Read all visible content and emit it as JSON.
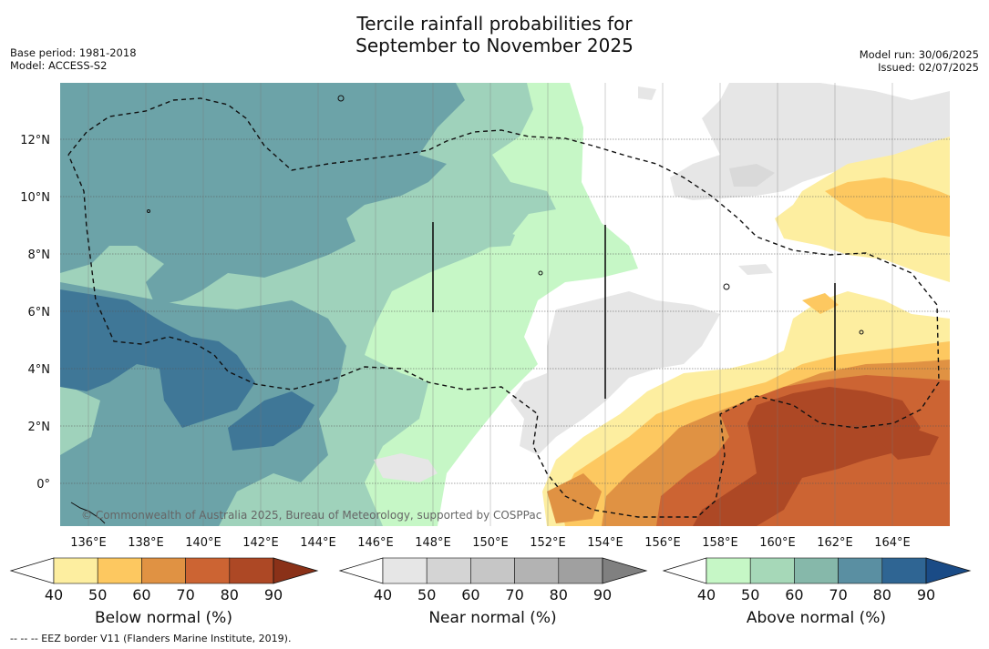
{
  "title_line1": "Tercile rainfall probabilities for",
  "title_line2": "September to November 2025",
  "base_period": "Base period: 1981-2018",
  "model": "Model: ACCESS-S2",
  "model_run": "Model run: 30/06/2025",
  "issued": "Issued: 02/07/2025",
  "copyright": "© Commonwealth of Australia 2025, Bureau of Meteorology, supported by COSPPac",
  "footer": "--  --  -- EEZ border V11 (Flanders Marine Institute, 2019).",
  "lat_labels": [
    "12°N",
    "10°N",
    "8°N",
    "6°N",
    "4°N",
    "2°N",
    "0°"
  ],
  "lon_labels": [
    "136°E",
    "138°E",
    "140°E",
    "142°E",
    "144°E",
    "146°E",
    "148°E",
    "150°E",
    "152°E",
    "154°E",
    "156°E",
    "158°E",
    "160°E",
    "162°E",
    "164°E"
  ],
  "colorbars": [
    {
      "title": "Below normal (%)",
      "ticks": [
        "40",
        "50",
        "60",
        "70",
        "80",
        "90"
      ],
      "colors": [
        "#ffffff",
        "#fdeea0",
        "#fdc860",
        "#e09243",
        "#cc6433",
        "#ad4825",
        "#8a3118"
      ]
    },
    {
      "title": "Near normal (%)",
      "ticks": [
        "40",
        "50",
        "60",
        "70",
        "80",
        "90"
      ],
      "colors": [
        "#ffffff",
        "#e6e6e6",
        "#d4d4d4",
        "#c6c6c6",
        "#b3b3b3",
        "#a0a0a0",
        "#808080"
      ]
    },
    {
      "title": "Above normal (%)",
      "ticks": [
        "40",
        "50",
        "60",
        "70",
        "80",
        "90"
      ],
      "colors": [
        "#ffffff",
        "#c6f7c6",
        "#a6d8b8",
        "#86b8aa",
        "#5a8fa2",
        "#2f6593",
        "#1a4b86"
      ]
    }
  ],
  "colors": {
    "above_50": "#c6f7c6",
    "above_60": "#9fd2bb",
    "above_70": "#6ca3a8",
    "above_80": "#3f7797",
    "near_50": "#e6e6e6",
    "near_60": "#d9d9d9",
    "below_50": "#fdeea0",
    "below_60": "#fdc860",
    "below_70": "#e09243",
    "below_80": "#cc6433",
    "below_90": "#ad4825"
  }
}
